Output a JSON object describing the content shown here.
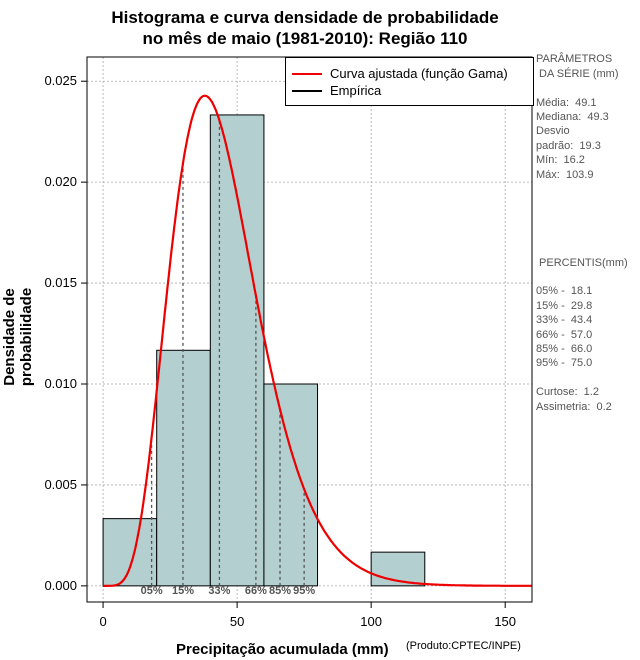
{
  "title": {
    "line1": "Histograma e curva densidade de probabilidade",
    "line2": "no mês de maio (1981-2010): Região 110"
  },
  "colors": {
    "bar": "#b4cfcf",
    "curve": "#ee0000",
    "grid": "#aaaaaa",
    "percentile": "#555555"
  },
  "legend": {
    "curve_label": "Curva ajustada (função Gama)",
    "empirical_label": "Empírica"
  },
  "params": {
    "header1": "PARÂMETROS",
    "header2": " DA SÉRIE (mm)",
    "media": "Média:  49.1",
    "mediana": "Mediana:  49.3",
    "desvio1": "Desvio",
    "desvio2": "padrão:  19.3",
    "min": "Mín:  16.2",
    "max": "Máx:  103.9"
  },
  "percentis": {
    "header": " PERCENTIS(mm)",
    "p05": "05% -  18.1",
    "p15": "15% -  29.8",
    "p33": "33% -  43.4",
    "p66": "66% -  57.0",
    "p85": "85% -  66.0",
    "p95": "95% -  75.0",
    "curtose": "Curtose:  1.2",
    "assimetria": "Assimetria:  0.2"
  },
  "credit": "(Produto:CPTEC/INPE)",
  "chart_data": {
    "type": "bar",
    "xlabel": "Precipitação acumulada (mm)",
    "ylabel": "Densidade de probabilidade",
    "xlim": [
      -6,
      160
    ],
    "ylim": [
      -0.0008,
      0.0262
    ],
    "xticks": [
      0,
      50,
      100,
      150
    ],
    "yticks": [
      0.0,
      0.005,
      0.01,
      0.015,
      0.02,
      0.025
    ],
    "ytick_labels": [
      "0.000",
      "0.005",
      "0.010",
      "0.015",
      "0.020",
      "0.025"
    ],
    "bins": [
      {
        "x0": 0,
        "x1": 20,
        "density": 0.00333
      },
      {
        "x0": 20,
        "x1": 40,
        "density": 0.01167
      },
      {
        "x0": 40,
        "x1": 60,
        "density": 0.02333
      },
      {
        "x0": 60,
        "x1": 80,
        "density": 0.01
      },
      {
        "x0": 80,
        "x1": 100,
        "density": 0.0
      },
      {
        "x0": 100,
        "x1": 120,
        "density": 0.00167
      }
    ],
    "gamma_fit": {
      "shape": 6.5,
      "scale": 6.9
    },
    "percentiles": [
      {
        "label": "05%",
        "value": 18.1
      },
      {
        "label": "15%",
        "value": 29.8
      },
      {
        "label": "33%",
        "value": 43.4
      },
      {
        "label": "66%",
        "value": 57.0
      },
      {
        "label": "85%",
        "value": 66.0
      },
      {
        "label": "95%",
        "value": 75.0
      }
    ]
  }
}
